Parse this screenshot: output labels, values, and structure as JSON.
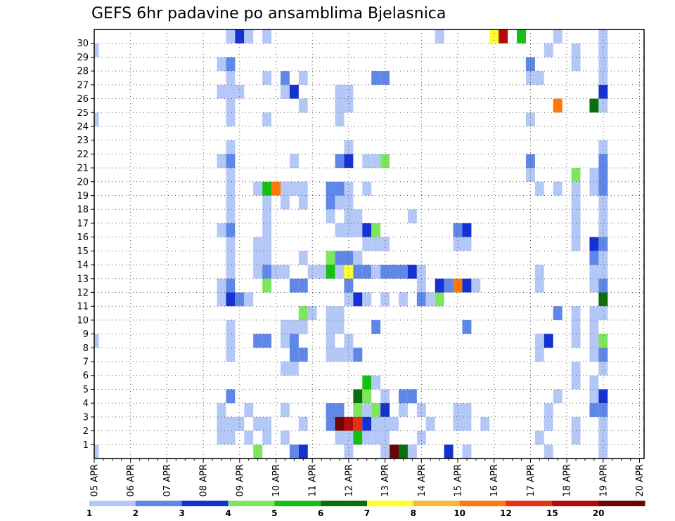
{
  "chart_data": {
    "type": "heatmap",
    "title": "GEFS 6hr padavine po ansamblima Bjelasnica",
    "xlabel": "",
    "ylabel": "",
    "x_ticks": [
      "05 APR",
      "06 APR",
      "07 APR",
      "08 APR",
      "09 APR",
      "10 APR",
      "11 APR",
      "12 APR",
      "13 APR",
      "14 APR",
      "15 APR",
      "16 APR",
      "17 APR",
      "18 APR",
      "19 APR",
      "20 APR"
    ],
    "y_ticks": [
      "1",
      "2",
      "3",
      "4",
      "5",
      "6",
      "7",
      "8",
      "9",
      "10",
      "11",
      "12",
      "13",
      "14",
      "15",
      "16",
      "17",
      "18",
      "19",
      "20",
      "21",
      "22",
      "23",
      "24",
      "25",
      "26",
      "27",
      "28",
      "29",
      "30"
    ],
    "time_steps_per_day": 4,
    "time_steps": 61,
    "members": 31,
    "grid": true,
    "legend": "bottom",
    "colorbar": {
      "levels": [
        "1",
        "2",
        "3",
        "4",
        "5",
        "6",
        "7",
        "8",
        "10",
        "12",
        "15",
        "20"
      ],
      "colors": [
        "#b4c8f8",
        "#5f87e8",
        "#1432d2",
        "#7ee65e",
        "#14c014",
        "#0a6e0a",
        "#ffff28",
        "#ffb43c",
        "#ff780a",
        "#e63214",
        "#b40a0a",
        "#6e0505"
      ]
    },
    "cells": [
      [
        0,
        0,
        0
      ],
      [
        0,
        24,
        0
      ],
      [
        0,
        29,
        0
      ],
      [
        0,
        8,
        0
      ],
      [
        14,
        2,
        0
      ],
      [
        14,
        3,
        0
      ],
      [
        14,
        1,
        0
      ],
      [
        14,
        28,
        0
      ],
      [
        14,
        26,
        0
      ],
      [
        14,
        16,
        0
      ],
      [
        14,
        21,
        0
      ],
      [
        14,
        12,
        0
      ],
      [
        14,
        11,
        0
      ],
      [
        15,
        30,
        0
      ],
      [
        15,
        28,
        1
      ],
      [
        15,
        27,
        0
      ],
      [
        15,
        26,
        0
      ],
      [
        15,
        25,
        0
      ],
      [
        15,
        24,
        0
      ],
      [
        15,
        22,
        0
      ],
      [
        15,
        21,
        1
      ],
      [
        15,
        20,
        0
      ],
      [
        15,
        19,
        0
      ],
      [
        15,
        18,
        0
      ],
      [
        15,
        17,
        0
      ],
      [
        15,
        16,
        1
      ],
      [
        15,
        15,
        0
      ],
      [
        15,
        14,
        0
      ],
      [
        15,
        13,
        0
      ],
      [
        15,
        12,
        1
      ],
      [
        15,
        11,
        2
      ],
      [
        15,
        9,
        0
      ],
      [
        15,
        8,
        0
      ],
      [
        15,
        7,
        0
      ],
      [
        15,
        4,
        1
      ],
      [
        15,
        2,
        0
      ],
      [
        15,
        1,
        0
      ],
      [
        16,
        30,
        2
      ],
      [
        16,
        26,
        0
      ],
      [
        16,
        11,
        1
      ],
      [
        16,
        2,
        0
      ],
      [
        17,
        30,
        0
      ],
      [
        17,
        11,
        0
      ],
      [
        17,
        3,
        0
      ],
      [
        17,
        1,
        0
      ],
      [
        18,
        19,
        0
      ],
      [
        18,
        15,
        0
      ],
      [
        18,
        14,
        0
      ],
      [
        18,
        13,
        0
      ],
      [
        18,
        8,
        1
      ],
      [
        18,
        2,
        0
      ],
      [
        18,
        0,
        3
      ],
      [
        19,
        30,
        0
      ],
      [
        19,
        27,
        0
      ],
      [
        19,
        24,
        0
      ],
      [
        19,
        19,
        4
      ],
      [
        19,
        18,
        0
      ],
      [
        19,
        17,
        0
      ],
      [
        19,
        16,
        0
      ],
      [
        19,
        15,
        0
      ],
      [
        19,
        14,
        0
      ],
      [
        19,
        13,
        1
      ],
      [
        19,
        12,
        3
      ],
      [
        19,
        8,
        1
      ],
      [
        19,
        2,
        0
      ],
      [
        19,
        1,
        0
      ],
      [
        20,
        19,
        8
      ],
      [
        20,
        13,
        0
      ],
      [
        21,
        27,
        1
      ],
      [
        21,
        26,
        0
      ],
      [
        21,
        19,
        0
      ],
      [
        21,
        18,
        0
      ],
      [
        21,
        13,
        0
      ],
      [
        21,
        9,
        0
      ],
      [
        21,
        8,
        0
      ],
      [
        21,
        6,
        0
      ],
      [
        21,
        3,
        0
      ],
      [
        21,
        1,
        0
      ],
      [
        22,
        26,
        2
      ],
      [
        22,
        21,
        0
      ],
      [
        22,
        19,
        0
      ],
      [
        22,
        12,
        1
      ],
      [
        22,
        9,
        0
      ],
      [
        22,
        8,
        1
      ],
      [
        22,
        7,
        1
      ],
      [
        22,
        6,
        0
      ],
      [
        22,
        0,
        1
      ],
      [
        23,
        27,
        0
      ],
      [
        23,
        25,
        0
      ],
      [
        23,
        19,
        0
      ],
      [
        23,
        18,
        0
      ],
      [
        23,
        14,
        0
      ],
      [
        23,
        12,
        1
      ],
      [
        23,
        10,
        3
      ],
      [
        23,
        9,
        0
      ],
      [
        23,
        7,
        1
      ],
      [
        23,
        2,
        0
      ],
      [
        23,
        0,
        2
      ],
      [
        24,
        13,
        0
      ],
      [
        24,
        10,
        0
      ],
      [
        25,
        13,
        0
      ],
      [
        26,
        19,
        1
      ],
      [
        26,
        18,
        1
      ],
      [
        26,
        17,
        0
      ],
      [
        26,
        14,
        3
      ],
      [
        26,
        13,
        4
      ],
      [
        26,
        10,
        0
      ],
      [
        26,
        9,
        0
      ],
      [
        26,
        8,
        0
      ],
      [
        26,
        7,
        0
      ],
      [
        26,
        3,
        1
      ],
      [
        26,
        2,
        1
      ],
      [
        27,
        26,
        0
      ],
      [
        27,
        25,
        0
      ],
      [
        27,
        24,
        0
      ],
      [
        27,
        21,
        1
      ],
      [
        27,
        19,
        1
      ],
      [
        27,
        18,
        0
      ],
      [
        27,
        16,
        0
      ],
      [
        27,
        14,
        1
      ],
      [
        27,
        13,
        0
      ],
      [
        27,
        10,
        0
      ],
      [
        27,
        9,
        0
      ],
      [
        27,
        7,
        0
      ],
      [
        27,
        3,
        1
      ],
      [
        27,
        2,
        11
      ],
      [
        27,
        1,
        0
      ],
      [
        28,
        26,
        0
      ],
      [
        28,
        25,
        0
      ],
      [
        28,
        22,
        0
      ],
      [
        28,
        21,
        2
      ],
      [
        28,
        19,
        0
      ],
      [
        28,
        18,
        0
      ],
      [
        28,
        17,
        0
      ],
      [
        28,
        16,
        0
      ],
      [
        28,
        14,
        1
      ],
      [
        28,
        13,
        6
      ],
      [
        28,
        12,
        1
      ],
      [
        28,
        11,
        0
      ],
      [
        28,
        8,
        0
      ],
      [
        28,
        7,
        0
      ],
      [
        28,
        2,
        10
      ],
      [
        28,
        1,
        0
      ],
      [
        28,
        0,
        0
      ],
      [
        29,
        17,
        0
      ],
      [
        29,
        16,
        0
      ],
      [
        29,
        14,
        0
      ],
      [
        29,
        13,
        1
      ],
      [
        29,
        11,
        2
      ],
      [
        29,
        7,
        1
      ],
      [
        29,
        4,
        5
      ],
      [
        29,
        3,
        3
      ],
      [
        29,
        2,
        9
      ],
      [
        29,
        1,
        4
      ],
      [
        30,
        21,
        0
      ],
      [
        30,
        19,
        0
      ],
      [
        30,
        16,
        2
      ],
      [
        30,
        15,
        0
      ],
      [
        30,
        13,
        1
      ],
      [
        30,
        11,
        0
      ],
      [
        30,
        5,
        4
      ],
      [
        30,
        4,
        3
      ],
      [
        30,
        3,
        0
      ],
      [
        30,
        2,
        2
      ],
      [
        30,
        1,
        0
      ],
      [
        31,
        27,
        1
      ],
      [
        31,
        21,
        0
      ],
      [
        31,
        16,
        3
      ],
      [
        31,
        15,
        0
      ],
      [
        31,
        13,
        0
      ],
      [
        31,
        9,
        1
      ],
      [
        31,
        5,
        0
      ],
      [
        31,
        3,
        3
      ],
      [
        31,
        2,
        0
      ],
      [
        31,
        1,
        0
      ],
      [
        32,
        27,
        1
      ],
      [
        32,
        21,
        3
      ],
      [
        32,
        15,
        0
      ],
      [
        32,
        13,
        1
      ],
      [
        32,
        11,
        0
      ],
      [
        32,
        4,
        0
      ],
      [
        32,
        3,
        2
      ],
      [
        32,
        2,
        0
      ],
      [
        32,
        1,
        0
      ],
      [
        32,
        0,
        0
      ],
      [
        33,
        13,
        1
      ],
      [
        33,
        2,
        0
      ],
      [
        33,
        0,
        11
      ],
      [
        34,
        13,
        1
      ],
      [
        34,
        11,
        0
      ],
      [
        34,
        4,
        1
      ],
      [
        34,
        3,
        0
      ],
      [
        34,
        0,
        5
      ],
      [
        35,
        17,
        0
      ],
      [
        35,
        13,
        2
      ],
      [
        35,
        4,
        1
      ],
      [
        35,
        0,
        0
      ],
      [
        36,
        13,
        0
      ],
      [
        36,
        12,
        0
      ],
      [
        36,
        11,
        1
      ],
      [
        36,
        3,
        0
      ],
      [
        36,
        1,
        0
      ],
      [
        37,
        11,
        0
      ],
      [
        37,
        2,
        0
      ],
      [
        38,
        30,
        0
      ],
      [
        38,
        12,
        2
      ],
      [
        38,
        11,
        3
      ],
      [
        39,
        12,
        1
      ],
      [
        39,
        0,
        2
      ],
      [
        40,
        16,
        1
      ],
      [
        40,
        15,
        0
      ],
      [
        40,
        12,
        8
      ],
      [
        40,
        3,
        0
      ],
      [
        40,
        2,
        0
      ],
      [
        41,
        16,
        2
      ],
      [
        41,
        15,
        0
      ],
      [
        41,
        12,
        2
      ],
      [
        41,
        9,
        1
      ],
      [
        41,
        3,
        0
      ],
      [
        41,
        2,
        0
      ],
      [
        41,
        0,
        0
      ],
      [
        42,
        12,
        0
      ],
      [
        43,
        2,
        0
      ],
      [
        44,
        30,
        6
      ],
      [
        45,
        30,
        10
      ],
      [
        47,
        30,
        4
      ],
      [
        48,
        28,
        1
      ],
      [
        48,
        27,
        0
      ],
      [
        48,
        24,
        0
      ],
      [
        48,
        21,
        1
      ],
      [
        48,
        20,
        0
      ],
      [
        49,
        27,
        0
      ],
      [
        49,
        19,
        0
      ],
      [
        49,
        13,
        0
      ],
      [
        49,
        12,
        0
      ],
      [
        49,
        8,
        0
      ],
      [
        49,
        7,
        0
      ],
      [
        49,
        1,
        0
      ],
      [
        50,
        29,
        0
      ],
      [
        50,
        8,
        2
      ],
      [
        50,
        3,
        0
      ],
      [
        50,
        0,
        0
      ],
      [
        50,
        2,
        0
      ],
      [
        51,
        30,
        0
      ],
      [
        51,
        25,
        8
      ],
      [
        51,
        19,
        0
      ],
      [
        51,
        10,
        1
      ],
      [
        51,
        4,
        0
      ],
      [
        53,
        29,
        0
      ],
      [
        53,
        28,
        0
      ],
      [
        53,
        20,
        3
      ],
      [
        53,
        19,
        0
      ],
      [
        53,
        18,
        0
      ],
      [
        53,
        17,
        0
      ],
      [
        53,
        16,
        0
      ],
      [
        53,
        15,
        0
      ],
      [
        53,
        10,
        0
      ],
      [
        53,
        9,
        0
      ],
      [
        53,
        8,
        0
      ],
      [
        53,
        6,
        0
      ],
      [
        53,
        5,
        0
      ],
      [
        53,
        2,
        0
      ],
      [
        53,
        1,
        0
      ],
      [
        55,
        25,
        5
      ],
      [
        55,
        20,
        0
      ],
      [
        55,
        19,
        0
      ],
      [
        55,
        15,
        2
      ],
      [
        55,
        14,
        1
      ],
      [
        55,
        13,
        0
      ],
      [
        55,
        12,
        0
      ],
      [
        55,
        10,
        0
      ],
      [
        55,
        9,
        0
      ],
      [
        55,
        8,
        0
      ],
      [
        55,
        7,
        0
      ],
      [
        55,
        5,
        0
      ],
      [
        55,
        4,
        0
      ],
      [
        55,
        3,
        1
      ],
      [
        56,
        30,
        0
      ],
      [
        56,
        29,
        0
      ],
      [
        56,
        28,
        0
      ],
      [
        56,
        27,
        0
      ],
      [
        56,
        26,
        2
      ],
      [
        56,
        25,
        0
      ],
      [
        56,
        22,
        0
      ],
      [
        56,
        21,
        1
      ],
      [
        56,
        20,
        1
      ],
      [
        56,
        19,
        1
      ],
      [
        56,
        18,
        0
      ],
      [
        56,
        17,
        0
      ],
      [
        56,
        16,
        0
      ],
      [
        56,
        15,
        1
      ],
      [
        56,
        14,
        0
      ],
      [
        56,
        13,
        0
      ],
      [
        56,
        12,
        1
      ],
      [
        56,
        11,
        5
      ],
      [
        56,
        10,
        0
      ],
      [
        56,
        8,
        3
      ],
      [
        56,
        7,
        1
      ],
      [
        56,
        6,
        0
      ],
      [
        56,
        4,
        2
      ],
      [
        56,
        3,
        1
      ],
      [
        56,
        2,
        0
      ],
      [
        56,
        1,
        0
      ],
      [
        56,
        0,
        0
      ]
    ]
  }
}
